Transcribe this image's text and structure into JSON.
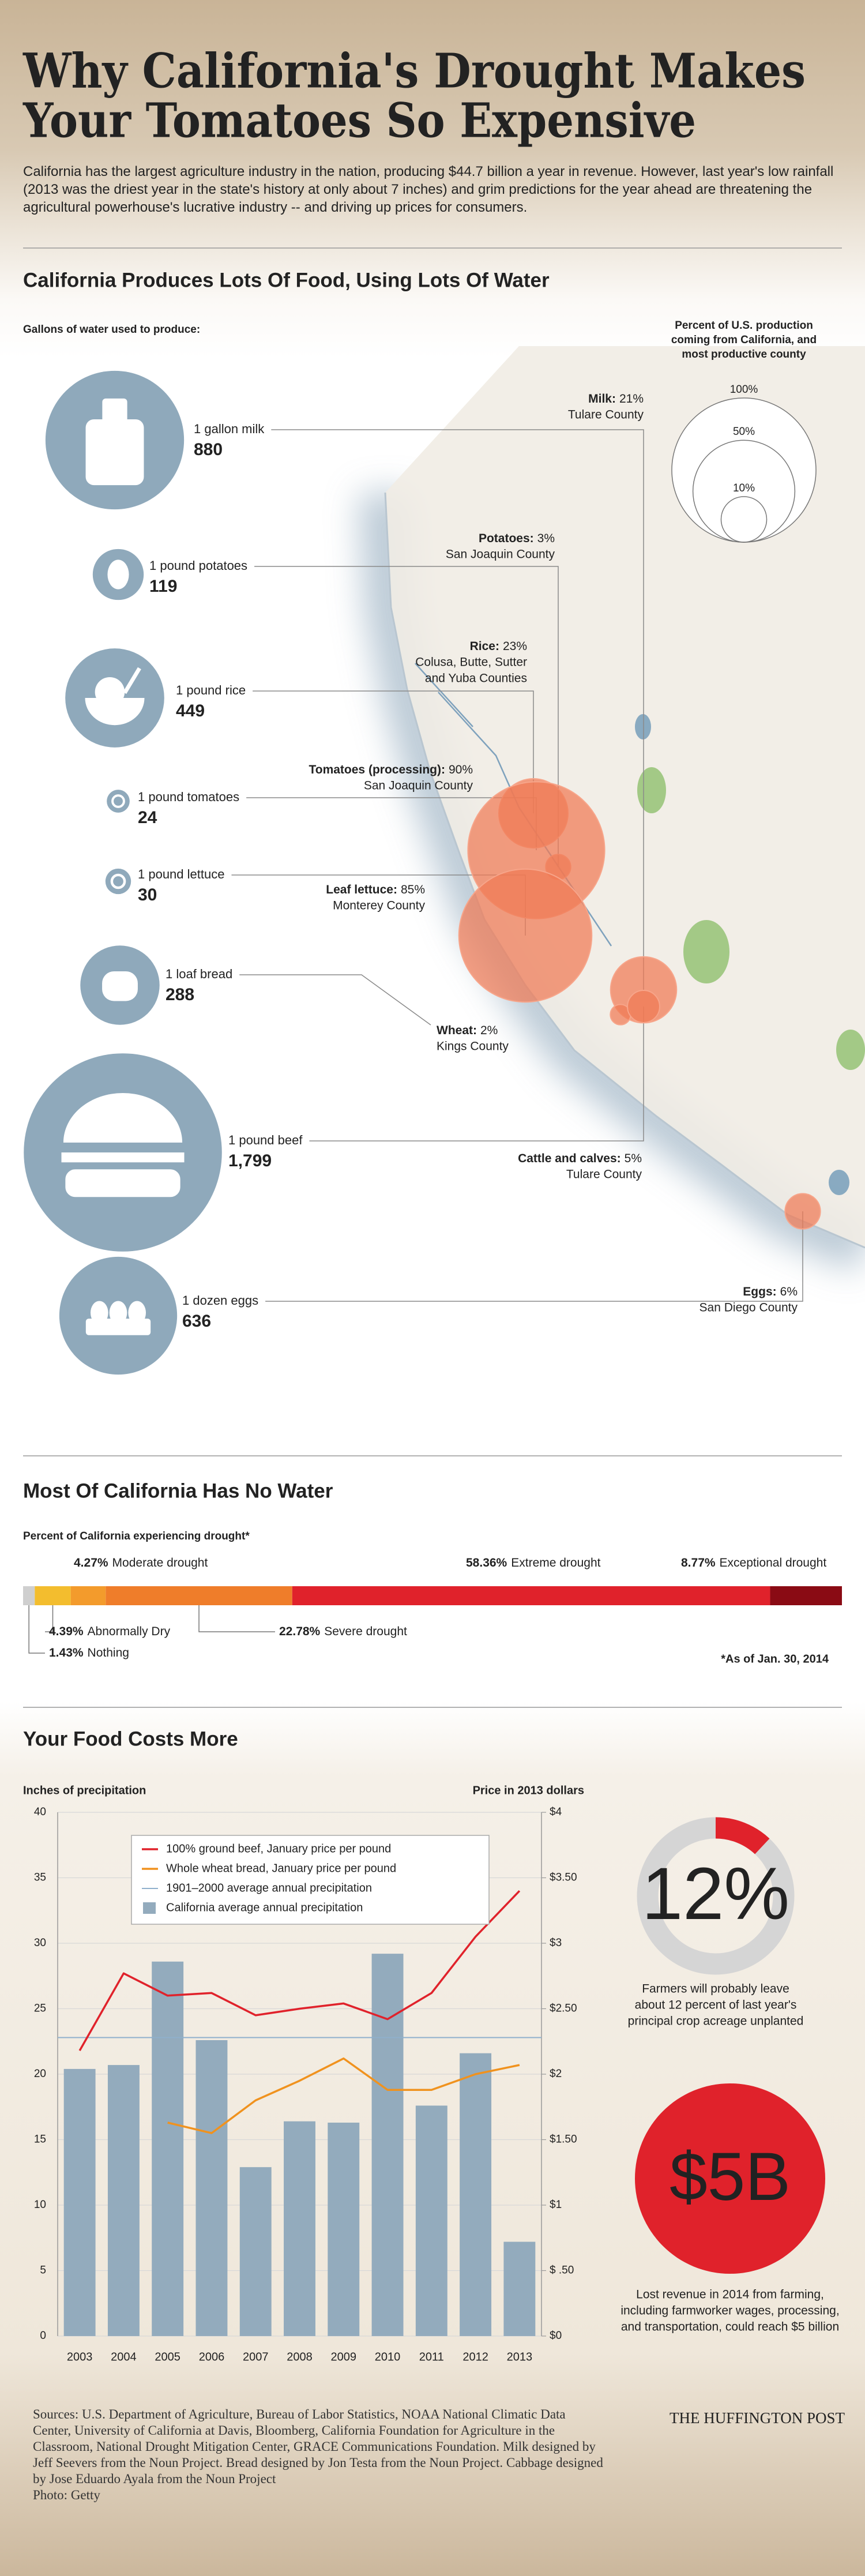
{
  "header": {
    "title": [
      "Why California's Drought Makes",
      "Your Tomatoes So Expensive"
    ],
    "intro": "California has the largest agriculture industry in the nation, producing $44.7 billion a year in revenue. However, last year's low rainfall (2013 was the driest year in the state's history at only about 7 inches) and grim predictions for the year ahead are threatening the agricultural powerhouse's lucrative industry -- and driving up prices for consumers."
  },
  "water": {
    "heading": "California Produces Lots Of Food, Using Lots Of Water",
    "subheading": "Gallons of water used to produce:",
    "legend_title": [
      "Percent of U.S. production",
      "coming from California, and",
      "most productive county"
    ],
    "legend_sizes": [
      {
        "value": 100,
        "label": "100%"
      },
      {
        "value": 50,
        "label": "50%"
      },
      {
        "value": 10,
        "label": "10%"
      }
    ],
    "items": [
      {
        "name": "1 gallon milk",
        "gallons": 880,
        "product": "Milk:",
        "percent": 21,
        "percent_label": "21%",
        "county": [
          "Tulare County"
        ]
      },
      {
        "name": "1 pound potatoes",
        "gallons": 119,
        "product": "Potatoes:",
        "percent": 3,
        "percent_label": "3%",
        "county": [
          "San Joaquin County"
        ]
      },
      {
        "name": "1 pound rice",
        "gallons": 449,
        "product": "Rice:",
        "percent": 23,
        "percent_label": "23%",
        "county": [
          "Colusa, Butte, Sutter",
          "and Yuba Counties"
        ]
      },
      {
        "name": "1 pound tomatoes",
        "gallons": 24,
        "product": "Tomatoes (processing):",
        "percent": 90,
        "percent_label": "90%",
        "county": [
          "San Joaquin County"
        ]
      },
      {
        "name": "1 pound lettuce",
        "gallons": 30,
        "product": "Leaf lettuce:",
        "percent": 85,
        "percent_label": "85%",
        "county": [
          "Monterey County"
        ]
      },
      {
        "name": "1 loaf bread",
        "gallons": 288,
        "product": "Wheat:",
        "percent": 2,
        "percent_label": "2%",
        "county": [
          "Kings County"
        ]
      },
      {
        "name": "1 pound beef",
        "gallons": 1799,
        "gallons_label": "1,799",
        "product": "Cattle and calves:",
        "percent": 5,
        "percent_label": "5%",
        "county": [
          "Tulare County"
        ]
      },
      {
        "name": "1 dozen eggs",
        "gallons": 636,
        "product": "Eggs:",
        "percent": 6,
        "percent_label": "6%",
        "county": [
          "San Diego County"
        ]
      }
    ]
  },
  "chart_data": [
    {
      "type": "stacked-bar",
      "title": "Most Of California Has No Water",
      "subtitle": "Percent of California experiencing drought*",
      "categories": [
        "Nothing",
        "Abnormally Dry",
        "Moderate drought",
        "Severe drought",
        "Extreme drought",
        "Exceptional drought"
      ],
      "values": [
        1.43,
        4.39,
        4.27,
        22.78,
        58.36,
        8.77
      ],
      "value_labels": [
        "1.43%",
        "4.39%",
        "4.27%",
        "22.78%",
        "58.36%",
        "8.77%"
      ],
      "colors": [
        "#cfcfcf",
        "#f3bd2e",
        "#f39b2c",
        "#ef7d2a",
        "#e0222b",
        "#8a0b14"
      ],
      "xlim": [
        0,
        100
      ],
      "note": "*As of Jan. 30, 2014"
    },
    {
      "type": "bar-line",
      "title": "Your Food Costs More",
      "ylabel": "Inches of precipitation",
      "y2label": "Price in 2013 dollars",
      "categories": [
        "2003",
        "2004",
        "2005",
        "2006",
        "2007",
        "2008",
        "2009",
        "2010",
        "2011",
        "2012",
        "2013"
      ],
      "ylim": [
        0,
        40
      ],
      "yticks": [
        0,
        5,
        10,
        15,
        20,
        25,
        30,
        35,
        40
      ],
      "y2lim": [
        0,
        4
      ],
      "y2ticks": [
        {
          "value": 0,
          "label": "$0"
        },
        {
          "value": 0.5,
          "label": "$ .50"
        },
        {
          "value": 1,
          "label": "$1"
        },
        {
          "value": 1.5,
          "label": "$1.50"
        },
        {
          "value": 2,
          "label": "$2"
        },
        {
          "value": 2.5,
          "label": "$2.50"
        },
        {
          "value": 3,
          "label": "$3"
        },
        {
          "value": 3.5,
          "label": "$3.50"
        },
        {
          "value": 4,
          "label": "$4"
        }
      ],
      "grid": true,
      "series": [
        {
          "name": "100% ground beef, January price per pound",
          "type": "line",
          "axis": "y2",
          "color": "#e0222b",
          "values": [
            2.18,
            2.77,
            2.6,
            2.62,
            2.45,
            2.5,
            2.54,
            2.42,
            2.62,
            3.05,
            3.4
          ]
        },
        {
          "name": "Whole wheat bread, January price per pound",
          "type": "line",
          "axis": "y2",
          "color": "#f0921e",
          "values": [
            null,
            null,
            1.63,
            1.55,
            1.8,
            1.95,
            2.12,
            1.88,
            1.88,
            2.0,
            2.07
          ]
        },
        {
          "name": "California average annual precipitation",
          "type": "bar",
          "color": "#93abbd",
          "values": [
            20.4,
            20.7,
            28.6,
            22.6,
            12.9,
            16.4,
            16.3,
            29.2,
            17.6,
            21.6,
            7.2
          ]
        }
      ],
      "reference_line": {
        "name": "1901–2000 average annual precipitation",
        "color": "#8fb0cc",
        "value": 22.8
      }
    }
  ],
  "stats": [
    {
      "value": 12,
      "label": "12%",
      "color": "#e0222b",
      "caption": [
        "Farmers will probably leave",
        "about 12 percent of last year's",
        "principal crop acreage unplanted"
      ]
    },
    {
      "label": "$5B",
      "color": "#e0222b",
      "caption": [
        "Lost revenue in 2014 from farming,",
        "including farmworker wages, processing,",
        "and transportation, could reach $5 billion"
      ]
    }
  ],
  "footer": {
    "sources": "Sources: U.S. Department of Agriculture, Bureau of Labor Statistics, NOAA National Climatic Data Center, University of California at Davis, Bloomberg, California Foundation for Agriculture in the Classroom, National Drought Mitigation Center, GRACE Communications Foundation. Milk designed by Jeff Seevers from the Noun Project. Bread designed by Jon Testa from the Noun Project. Cabbage designed by Jose Eduardo Ayala from the Noun Project",
    "photo": "Photo: Getty",
    "brand": "THE HUFFINGTON POST"
  }
}
